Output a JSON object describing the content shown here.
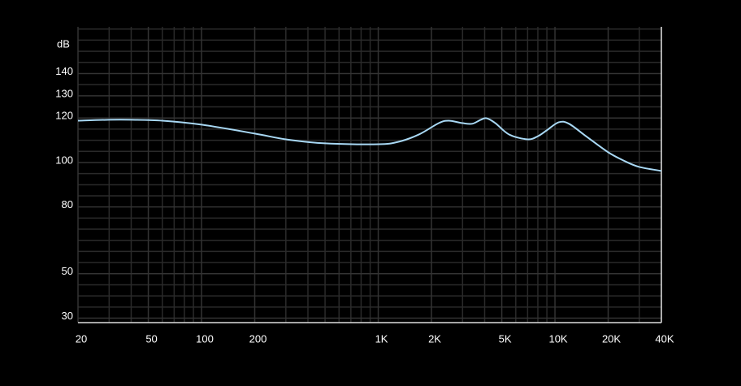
{
  "chart_data": {
    "type": "line",
    "y_label": "dB",
    "x": [
      20,
      30,
      40,
      60,
      100,
      200,
      300,
      500,
      1000,
      1300,
      1700,
      2200,
      2500,
      3000,
      3400,
      3800,
      4100,
      4600,
      5500,
      7000,
      8000,
      9000,
      10500,
      12000,
      15000,
      20000,
      25000,
      30000,
      40000
    ],
    "series": [
      {
        "color": "#a8d8f4",
        "values": [
          118.8,
          119.2,
          119.2,
          118.8,
          117,
          113,
          110.4,
          108.6,
          108.2,
          109.3,
          112.6,
          117.7,
          118.8,
          117.7,
          117.4,
          119.2,
          119.9,
          117.7,
          112.6,
          110.4,
          111.8,
          114.5,
          118.1,
          117.4,
          111.8,
          104.6,
          100.5,
          98,
          96.2
        ]
      }
    ],
    "xlim": [
      20,
      40000
    ],
    "log_x": true,
    "xticks": [
      20,
      50,
      100,
      200,
      {
        "value": 1000,
        "label": "1K"
      },
      {
        "value": 2000,
        "label": "2K"
      },
      {
        "value": 5000,
        "label": "5K"
      },
      {
        "value": 10000,
        "label": "10K"
      },
      {
        "value": 20000,
        "label": "20K"
      },
      {
        "value": 40000,
        "label": "40K"
      }
    ],
    "x_minor_ticks": [
      30,
      40,
      60,
      70,
      80,
      90,
      300,
      400,
      500,
      600,
      700,
      800,
      900,
      3000,
      4000,
      6000,
      7000,
      8000,
      9000,
      30000
    ],
    "ylim": [
      28,
      161
    ],
    "yticks": [
      30,
      50,
      80,
      100,
      120,
      130,
      140
    ],
    "y_minor_ticks": [
      35,
      40,
      45,
      55,
      60,
      65,
      70,
      75,
      85,
      90,
      95,
      105,
      110,
      115,
      125,
      135,
      145,
      150,
      155,
      160
    ],
    "grid": true
  }
}
